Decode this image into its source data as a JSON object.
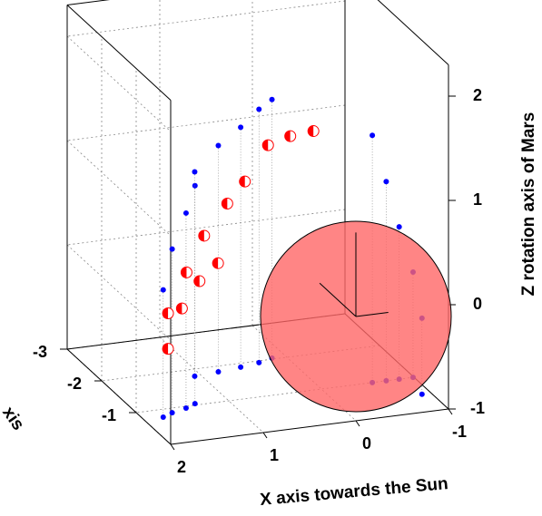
{
  "chart_data": {
    "type": "scatter3d",
    "x_label": "X axis towards the Sun",
    "y_label": "xis",
    "z_label": "Z rotation axis of Mars",
    "xlim": [
      -1,
      2
    ],
    "ylim": [
      -3,
      0
    ],
    "zlim": [
      -1,
      2.3
    ],
    "xticks": [
      2,
      1,
      0,
      -1
    ],
    "yticks": [
      -3,
      -2,
      -1
    ],
    "zticks": [
      -1,
      0,
      1,
      2
    ],
    "grid": true,
    "series": [
      {
        "color": "#0000ff",
        "marker": "dot",
        "x": [
          1.79,
          1.66,
          1.48,
          1.35,
          1.07,
          0.8,
          0.54,
          0.32,
          0.15,
          -0.55,
          -0.7,
          -0.84,
          -0.99,
          -0.9
        ],
        "y": [
          -0.78,
          -0.87,
          -0.95,
          -1.04,
          -1.8,
          -1.84,
          -1.89,
          -1.95,
          -2.03,
          -1,
          -1,
          -1,
          -1,
          -0.5
        ],
        "z": [
          0.22,
          0.57,
          0.87,
          1.09,
          0.96,
          1.17,
          1.3,
          1.43,
          1.48,
          1.37,
          0.91,
          0.46,
          0.01,
          -0.27
        ]
      },
      {
        "color": "#ff0000",
        "marker": "half",
        "x": [
          1.47,
          1.27,
          1.08,
          0.83,
          0.64,
          0.39,
          0.15,
          -0.1,
          1.32,
          1.13,
          0.93,
          1.47
        ],
        "y": [
          -1.5,
          -1.5,
          -1.5,
          -1.5,
          -1.5,
          -1.5,
          -1.5,
          -1.5,
          -1.5,
          -1.5,
          -1.5,
          -1.5
        ],
        "z": [
          -0.26,
          0.11,
          0.44,
          0.72,
          0.91,
          1.23,
          1.29,
          1.31,
          -0.23,
          0.01,
          0.16,
          -0.6
        ]
      }
    ]
  }
}
